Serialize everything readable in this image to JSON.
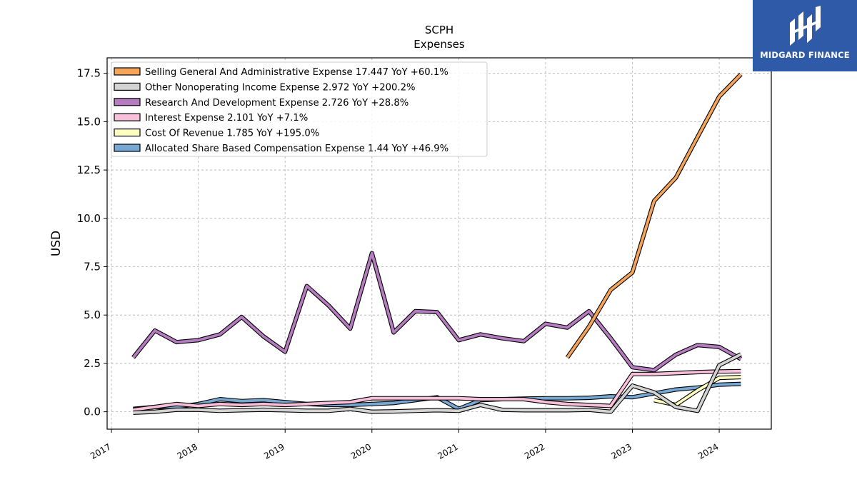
{
  "logo": {
    "name": "logo",
    "text": "MIDGARD FINANCE"
  },
  "chart_data": {
    "type": "line",
    "title": "SCPH",
    "subtitle": "Expenses",
    "xlabel": "",
    "ylabel": "USD",
    "xlim": [
      2016.95,
      2024.6
    ],
    "ylim": [
      -0.9,
      18.3
    ],
    "x_ticks": [
      2017,
      2018,
      2019,
      2020,
      2021,
      2022,
      2023,
      2024
    ],
    "x_tick_labels": [
      "2017",
      "2018",
      "2019",
      "2020",
      "2021",
      "2022",
      "2023",
      "2024"
    ],
    "y_ticks": [
      0.0,
      2.5,
      5.0,
      7.5,
      10.0,
      12.5,
      15.0,
      17.5
    ],
    "y_tick_labels": [
      "0.0",
      "2.5",
      "5.0",
      "7.5",
      "10.0",
      "12.5",
      "15.0",
      "17.5"
    ],
    "grid": true,
    "legend_position": "top-left",
    "series": [
      {
        "name": "Selling General And Administrative Expense",
        "legend": "Selling General And Administrative Expense  17.447 YoY +60.1%",
        "color": "#f5a55a",
        "points": [
          [
            2022.25,
            2.8
          ],
          [
            2022.5,
            4.4
          ],
          [
            2022.75,
            6.3
          ],
          [
            2023.0,
            7.2
          ],
          [
            2023.25,
            10.9
          ],
          [
            2023.5,
            12.1
          ],
          [
            2023.75,
            14.2
          ],
          [
            2024.0,
            16.3
          ],
          [
            2024.25,
            17.45
          ]
        ]
      },
      {
        "name": "Other Nonoperating Income Expense",
        "legend": "Other Nonoperating Income Expense  2.972 YoY +200.2%",
        "color": "#d3d3d3",
        "points": [
          [
            2017.25,
            -0.05
          ],
          [
            2017.5,
            0.0
          ],
          [
            2017.75,
            0.1
          ],
          [
            2018.0,
            0.1
          ],
          [
            2018.25,
            0.05
          ],
          [
            2018.5,
            0.08
          ],
          [
            2018.75,
            0.1
          ],
          [
            2019.0,
            0.08
          ],
          [
            2019.25,
            0.05
          ],
          [
            2019.5,
            0.05
          ],
          [
            2019.75,
            0.15
          ],
          [
            2020.0,
            0.0
          ],
          [
            2020.25,
            0.02
          ],
          [
            2020.5,
            0.05
          ],
          [
            2020.75,
            0.08
          ],
          [
            2021.0,
            0.05
          ],
          [
            2021.25,
            0.35
          ],
          [
            2021.5,
            0.1
          ],
          [
            2021.75,
            0.08
          ],
          [
            2022.0,
            0.08
          ],
          [
            2022.25,
            0.08
          ],
          [
            2022.5,
            0.1
          ],
          [
            2022.75,
            0.0
          ],
          [
            2023.0,
            1.35
          ],
          [
            2023.25,
            1.0
          ],
          [
            2023.5,
            0.25
          ],
          [
            2023.75,
            0.05
          ],
          [
            2024.0,
            2.4
          ],
          [
            2024.25,
            2.97
          ]
        ]
      },
      {
        "name": "Research And Development Expense",
        "legend": "Research And Development Expense  2.726 YoY +28.8%",
        "color": "#b57cc0",
        "points": [
          [
            2017.25,
            2.8
          ],
          [
            2017.5,
            4.2
          ],
          [
            2017.75,
            3.6
          ],
          [
            2018.0,
            3.7
          ],
          [
            2018.25,
            4.0
          ],
          [
            2018.5,
            4.9
          ],
          [
            2018.75,
            3.9
          ],
          [
            2019.0,
            3.1
          ],
          [
            2019.25,
            6.5
          ],
          [
            2019.5,
            5.5
          ],
          [
            2019.75,
            4.3
          ],
          [
            2020.0,
            8.2
          ],
          [
            2020.25,
            4.1
          ],
          [
            2020.5,
            5.2
          ],
          [
            2020.75,
            5.15
          ],
          [
            2021.0,
            3.7
          ],
          [
            2021.25,
            4.0
          ],
          [
            2021.5,
            3.8
          ],
          [
            2021.75,
            3.65
          ],
          [
            2022.0,
            4.55
          ],
          [
            2022.25,
            4.35
          ],
          [
            2022.5,
            5.2
          ],
          [
            2022.75,
            3.8
          ],
          [
            2023.0,
            2.3
          ],
          [
            2023.25,
            2.15
          ],
          [
            2023.5,
            2.95
          ],
          [
            2023.75,
            3.45
          ],
          [
            2024.0,
            3.35
          ],
          [
            2024.25,
            2.73
          ]
        ]
      },
      {
        "name": "Interest Expense",
        "legend": "Interest Expense  2.101 YoY +7.1%",
        "color": "#f7bfd9",
        "points": [
          [
            2017.25,
            0.1
          ],
          [
            2017.5,
            0.25
          ],
          [
            2017.75,
            0.4
          ],
          [
            2018.0,
            0.3
          ],
          [
            2018.25,
            0.4
          ],
          [
            2018.5,
            0.35
          ],
          [
            2018.75,
            0.4
          ],
          [
            2019.0,
            0.35
          ],
          [
            2019.25,
            0.4
          ],
          [
            2019.5,
            0.45
          ],
          [
            2019.75,
            0.5
          ],
          [
            2020.0,
            0.7
          ],
          [
            2020.25,
            0.7
          ],
          [
            2020.5,
            0.7
          ],
          [
            2020.75,
            0.7
          ],
          [
            2021.0,
            0.7
          ],
          [
            2021.25,
            0.65
          ],
          [
            2021.5,
            0.65
          ],
          [
            2021.75,
            0.65
          ],
          [
            2022.0,
            0.5
          ],
          [
            2022.25,
            0.4
          ],
          [
            2022.5,
            0.35
          ],
          [
            2022.75,
            0.3
          ],
          [
            2023.0,
            1.95
          ],
          [
            2023.25,
            1.95
          ],
          [
            2023.5,
            2.0
          ],
          [
            2023.75,
            2.05
          ],
          [
            2024.0,
            2.08
          ],
          [
            2024.25,
            2.1
          ]
        ]
      },
      {
        "name": "Cost Of Revenue",
        "legend": "Cost Of Revenue  1.785 YoY +195.0%",
        "color": "#ffffbf",
        "points": [
          [
            2023.25,
            0.6
          ],
          [
            2023.5,
            0.35
          ],
          [
            2023.75,
            1.1
          ],
          [
            2024.0,
            1.75
          ],
          [
            2024.25,
            1.79
          ]
        ]
      },
      {
        "name": "Allocated Share Based Compensation Expense",
        "legend": "Allocated Share Based Compensation Expense  1.44 YoY +46.9%",
        "color": "#77a8d3",
        "points": [
          [
            2017.25,
            0.15
          ],
          [
            2017.5,
            0.25
          ],
          [
            2017.75,
            0.25
          ],
          [
            2018.0,
            0.4
          ],
          [
            2018.25,
            0.65
          ],
          [
            2018.5,
            0.55
          ],
          [
            2018.75,
            0.6
          ],
          [
            2019.0,
            0.5
          ],
          [
            2019.25,
            0.4
          ],
          [
            2019.5,
            0.35
          ],
          [
            2019.75,
            0.35
          ],
          [
            2020.0,
            0.4
          ],
          [
            2020.25,
            0.45
          ],
          [
            2020.5,
            0.6
          ],
          [
            2020.75,
            0.75
          ],
          [
            2021.0,
            0.15
          ],
          [
            2021.25,
            0.6
          ],
          [
            2021.5,
            0.65
          ],
          [
            2021.75,
            0.68
          ],
          [
            2022.0,
            0.7
          ],
          [
            2022.25,
            0.7
          ],
          [
            2022.5,
            0.72
          ],
          [
            2022.75,
            0.8
          ],
          [
            2023.0,
            0.75
          ],
          [
            2023.25,
            0.95
          ],
          [
            2023.5,
            1.15
          ],
          [
            2023.75,
            1.25
          ],
          [
            2024.0,
            1.4
          ],
          [
            2024.25,
            1.44
          ]
        ]
      }
    ]
  }
}
